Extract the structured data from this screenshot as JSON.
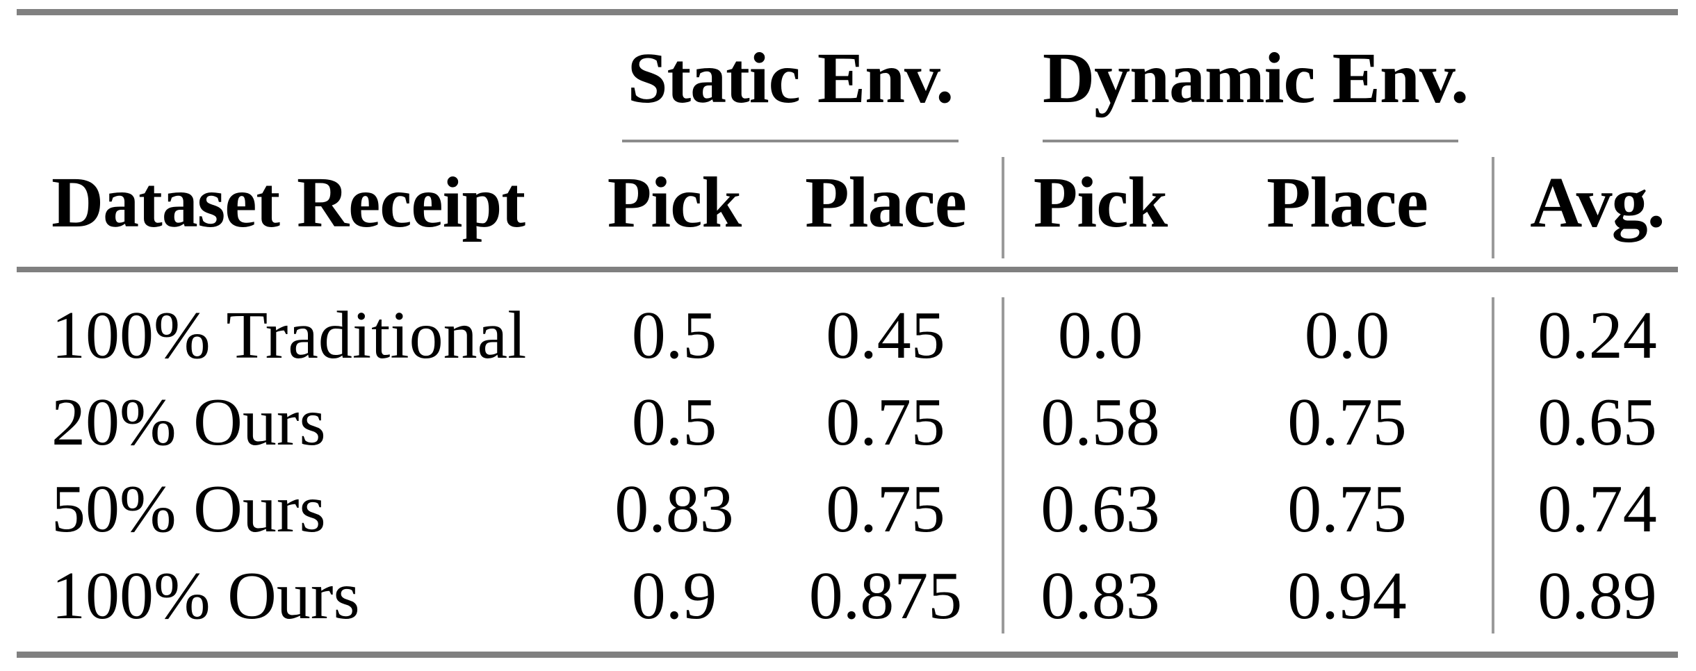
{
  "theme": {
    "page_bg": "#ffffff",
    "text_color": "#000000",
    "rule_color": "#808080",
    "thin_rule_color": "#8c8c8c",
    "vrule_color": "#9a9a9a"
  },
  "table": {
    "header_groups": [
      {
        "label": "Static Env."
      },
      {
        "label": "Dynamic Env."
      }
    ],
    "header": {
      "row_label": "Dataset Receipt",
      "static_pick": "Pick",
      "static_place": "Place",
      "dynamic_pick": "Pick",
      "dynamic_place": "Place",
      "avg": "Avg."
    },
    "rows": [
      {
        "label": "100% Traditional",
        "static_pick": "0.5",
        "static_place": "0.45",
        "dynamic_pick": "0.0",
        "dynamic_place": "0.0",
        "avg": "0.24"
      },
      {
        "label": "20% Ours",
        "static_pick": "0.5",
        "static_place": "0.75",
        "dynamic_pick": "0.58",
        "dynamic_place": "0.75",
        "avg": "0.65"
      },
      {
        "label": "50% Ours",
        "static_pick": "0.83",
        "static_place": "0.75",
        "dynamic_pick": "0.63",
        "dynamic_place": "0.75",
        "avg": "0.74"
      },
      {
        "label": "100% Ours",
        "static_pick": "0.9",
        "static_place": "0.875",
        "dynamic_pick": "0.83",
        "dynamic_place": "0.94",
        "avg": "0.89"
      }
    ]
  },
  "chart_data": {
    "type": "table",
    "title": "",
    "columns": [
      "Dataset Receipt",
      "Static Env. Pick",
      "Static Env. Place",
      "Dynamic Env. Pick",
      "Dynamic Env. Place",
      "Avg."
    ],
    "rows": [
      [
        "100% Traditional",
        0.5,
        0.45,
        0.0,
        0.0,
        0.24
      ],
      [
        "20% Ours",
        0.5,
        0.75,
        0.58,
        0.75,
        0.65
      ],
      [
        "50% Ours",
        0.83,
        0.75,
        0.63,
        0.75,
        0.74
      ],
      [
        "100% Ours",
        0.9,
        0.875,
        0.83,
        0.94,
        0.89
      ]
    ]
  }
}
